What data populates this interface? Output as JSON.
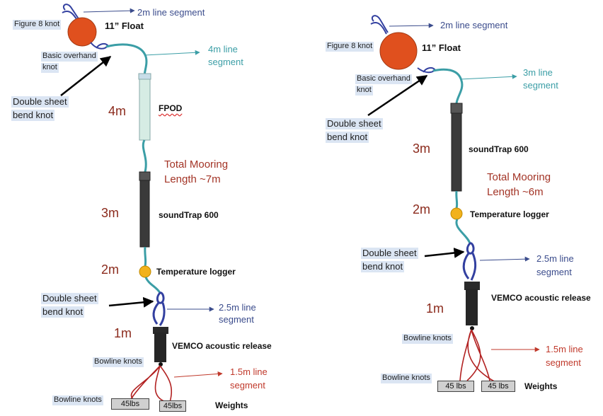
{
  "left": {
    "figure8": "Figure 8 knot",
    "float": "11” Float",
    "top_segment": "2m line segment",
    "overhand_1": "Basic overhand",
    "overhand_2": "knot",
    "segment4_1": "4m line",
    "segment4_2": "segment",
    "double_top_1": "Double sheet",
    "double_top_2": "bend knot",
    "seg_4m": "4m",
    "fpod": "FPOD",
    "total_1": "Total Mooring",
    "total_2": "Length ~7m",
    "seg_3m": "3m",
    "soundtrap": "soundTrap 600",
    "seg_2m": "2m",
    "temp": "Temperature logger",
    "double_bottom_1": "Double sheet",
    "double_bottom_2": "bend knot",
    "segment25_1": "2.5m line",
    "segment25_2": "segment",
    "seg_1m": "1m",
    "vemco": "VEMCO acoustic release",
    "bowline_a": "Bowline knots",
    "segment15_1": "1.5m line",
    "segment15_2": "segment",
    "bowline_b": "Bowline knots",
    "weight_1": "45lbs",
    "weight_2": "45lbs",
    "weights": "Weights"
  },
  "right": {
    "top_segment": "2m line segment",
    "figure8": "Figure 8 knot",
    "float": "11” Float",
    "overhand_1": "Basic overhand",
    "overhand_2": "knot",
    "segment3_1": "3m line",
    "segment3_2": "segment",
    "double_top_1": "Double sheet",
    "double_top_2": "bend knot",
    "seg_3m": "3m",
    "soundtrap": "soundTrap 600",
    "total_1": "Total Mooring",
    "total_2": "Length ~6m",
    "seg_2m": "2m",
    "temp": "Temperature logger",
    "double_bottom_1": "Double sheet",
    "double_bottom_2": "bend knot",
    "segment25_1": "2.5m line",
    "segment25_2": "segment",
    "seg_1m": "1m",
    "vemco": "VEMCO acoustic release",
    "bowline_a": "Bowline knots",
    "segment15_1": "1.5m line",
    "segment15_2": "segment",
    "bowline_b": "Bowline knots",
    "weight_1": "45 lbs",
    "weight_2": "45 lbs",
    "weights": "Weights"
  },
  "colors": {
    "float": "#e0501e",
    "rope_teal": "#3b9ea6",
    "rope_blue": "#3340a0",
    "rope_red": "#b22222",
    "logger": "#f2b21c",
    "navy_text": "#3b4c8c",
    "teal_text": "#3b9ea6",
    "red_text": "#c0392b",
    "segment_text": "#8b2a1c"
  }
}
